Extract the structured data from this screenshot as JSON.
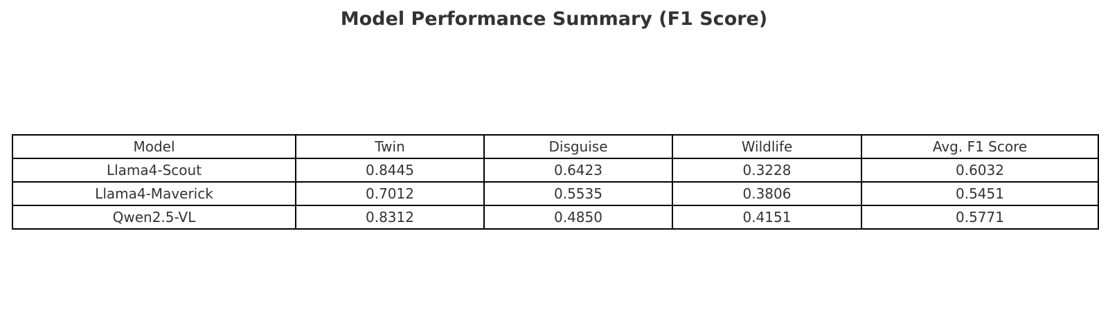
{
  "chart_data": {
    "type": "table",
    "title": "Model Performance Summary (F1 Score)",
    "columns": [
      "Model",
      "Twin",
      "Disguise",
      "Wildlife",
      "Avg. F1 Score"
    ],
    "rows": [
      [
        "Llama4-Scout",
        "0.8445",
        "0.6423",
        "0.3228",
        "0.6032"
      ],
      [
        "Llama4-Maverick",
        "0.7012",
        "0.5535",
        "0.3806",
        "0.5451"
      ],
      [
        "Qwen2.5-VL",
        "0.8312",
        "0.4850",
        "0.4151",
        "0.5771"
      ]
    ],
    "border_color": "#000000",
    "text_color": "#333333"
  }
}
